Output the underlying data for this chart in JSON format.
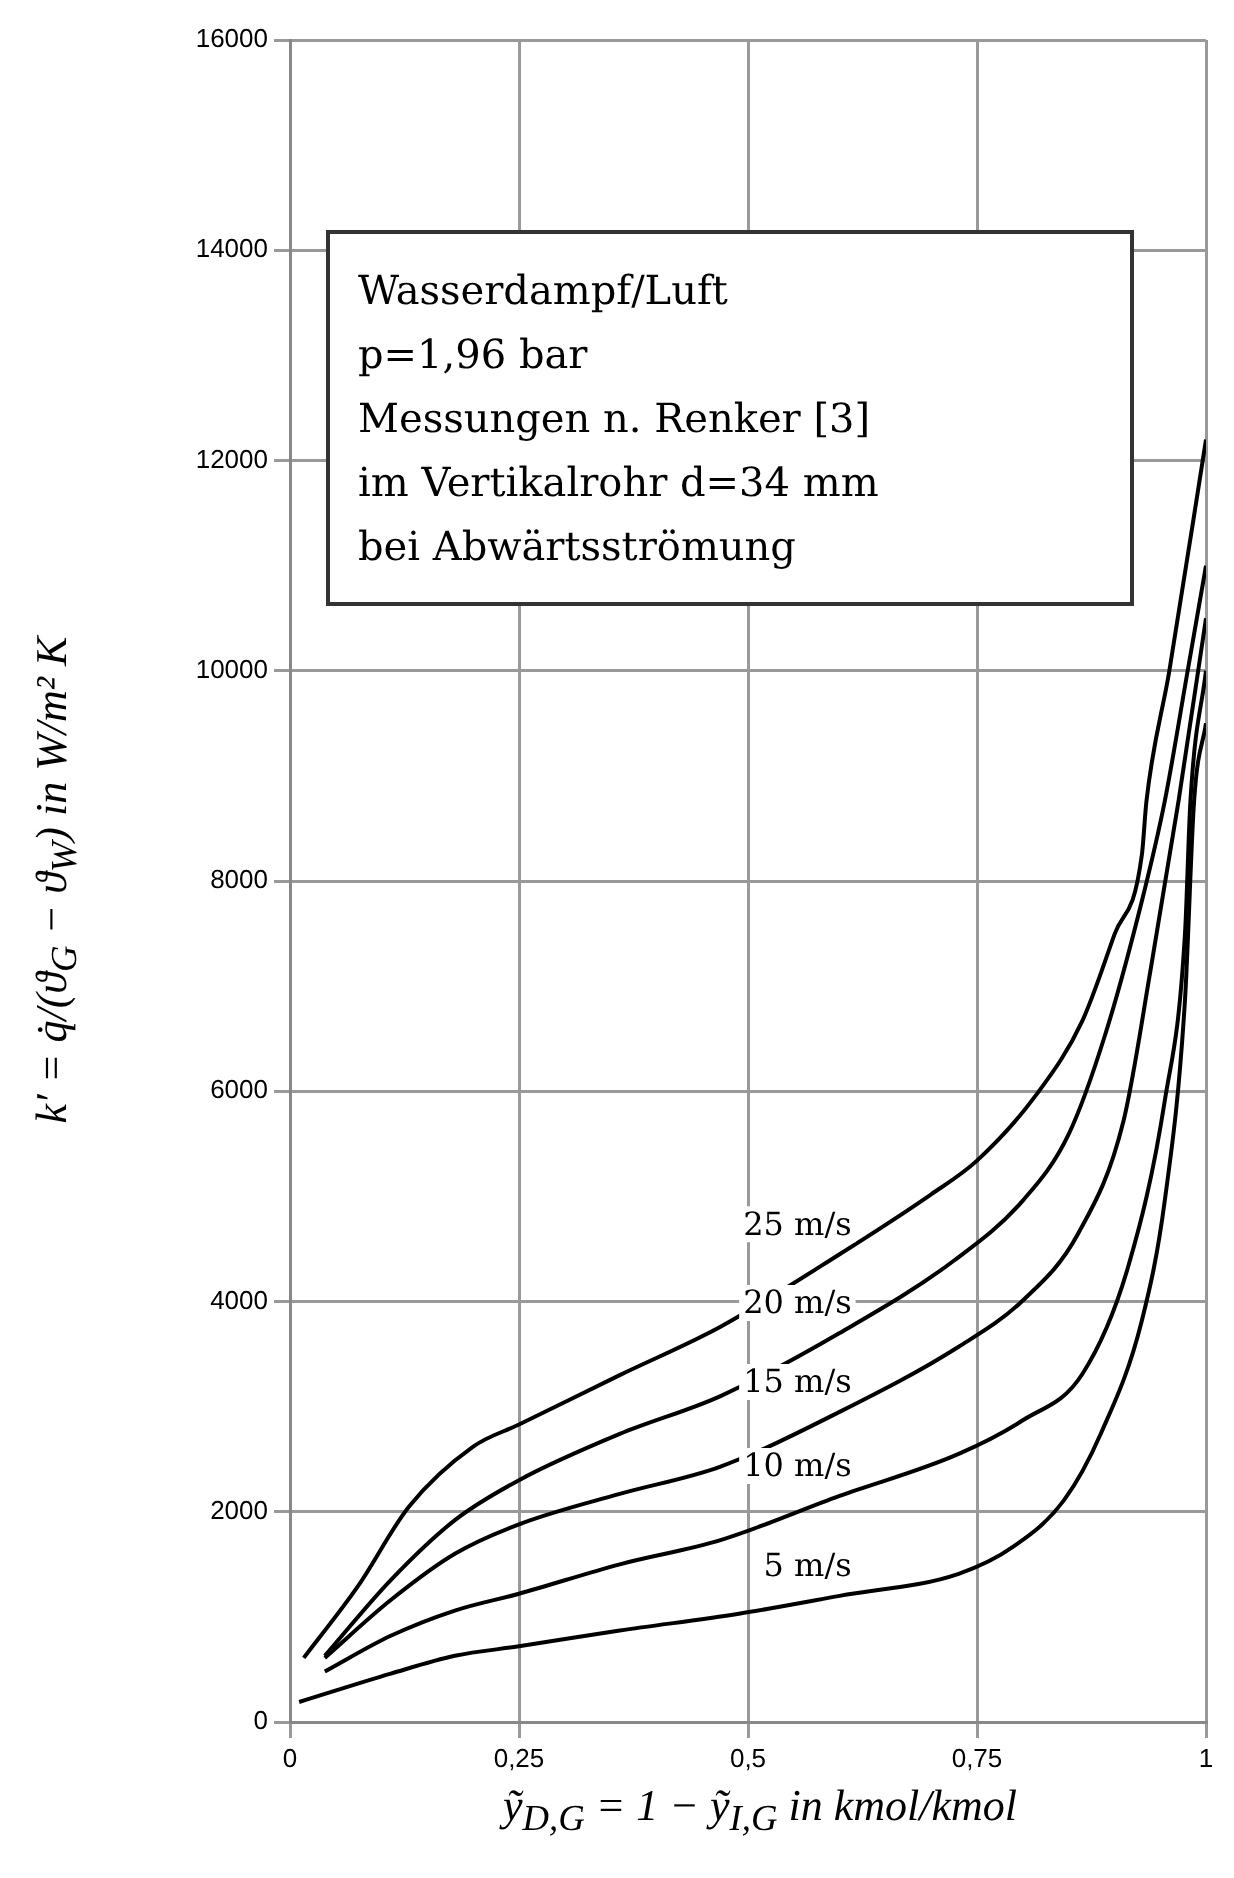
{
  "chart_data": {
    "type": "line",
    "xlabel": "ỹ$_{D,G}$ = 1 − ỹ$_{I,G}$ in kmol/kmol",
    "ylabel": "k′ = q̇/(ϑ$_{G}$ − ϑ$_{W}$) in W/m² K",
    "xlim": [
      0,
      1
    ],
    "xticks": [
      0,
      {
        "value": 0.25,
        "label": "0,25"
      },
      {
        "value": 0.5,
        "label": "0,5"
      },
      {
        "value": 0.75,
        "label": "0,75"
      },
      1
    ],
    "ylim": [
      0,
      16000
    ],
    "yticks": [
      0,
      2000,
      4000,
      6000,
      8000,
      10000,
      12000,
      14000,
      16000
    ],
    "grid": true,
    "legend": false,
    "marker": "none",
    "line_style": "solid",
    "series": [
      {
        "name": "25 m/s",
        "color": "#000000",
        "x": [
          0.015,
          0.074,
          0.13,
          0.2,
          0.25,
          0.36,
          0.47,
          0.6,
          0.7,
          0.75,
          0.815,
          0.865,
          0.9,
          0.93,
          0.935,
          0.96,
          1
        ],
        "values": [
          610,
          1290,
          2050,
          2620,
          2830,
          3300,
          3760,
          4450,
          5020,
          5340,
          5970,
          6670,
          7490,
          8250,
          8760,
          10000,
          12200
        ]
      },
      {
        "name": "20 m/s",
        "color": "#000000",
        "x": [
          0.038,
          0.11,
          0.18,
          0.25,
          0.36,
          0.47,
          0.6,
          0.725,
          0.8,
          0.85,
          0.89,
          0.93,
          0.955,
          0.98,
          1
        ],
        "values": [
          630,
          1350,
          1920,
          2300,
          2740,
          3100,
          3700,
          4390,
          4960,
          5590,
          6540,
          7810,
          8760,
          10000,
          11000
        ]
      },
      {
        "name": "15 m/s",
        "color": "#000000",
        "x": [
          0.038,
          0.11,
          0.18,
          0.25,
          0.36,
          0.47,
          0.6,
          0.73,
          0.8,
          0.86,
          0.91,
          0.94,
          0.97,
          1
        ],
        "values": [
          610,
          1160,
          1600,
          1880,
          2170,
          2430,
          2950,
          3570,
          4010,
          4640,
          5720,
          7180,
          8760,
          10500
        ]
      },
      {
        "name": "10 m/s",
        "color": "#000000",
        "x": [
          0.038,
          0.11,
          0.18,
          0.25,
          0.36,
          0.47,
          0.6,
          0.73,
          0.8,
          0.865,
          0.915,
          0.955,
          0.977,
          0.983,
          1
        ],
        "values": [
          480,
          820,
          1060,
          1220,
          1500,
          1730,
          2150,
          2550,
          2870,
          3310,
          4330,
          5910,
          7490,
          8760,
          10000
        ]
      },
      {
        "name": "5 m/s",
        "color": "#000000",
        "x": [
          0.01,
          0.11,
          0.18,
          0.25,
          0.36,
          0.49,
          0.6,
          0.73,
          0.79,
          0.845,
          0.885,
          0.93,
          0.955,
          0.977,
          0.987,
          1
        ],
        "values": [
          190,
          460,
          630,
          720,
          870,
          1030,
          1200,
          1410,
          1670,
          2110,
          2740,
          3820,
          4960,
          6860,
          8760,
          9500
        ]
      }
    ],
    "annotations": [
      "Wasserdampf/Luft",
      "p=1,96 bar",
      "Messungen n. Renker [3]",
      "im Vertikalrohr d=34 mm",
      "bei Abwärtsströmung"
    ]
  }
}
